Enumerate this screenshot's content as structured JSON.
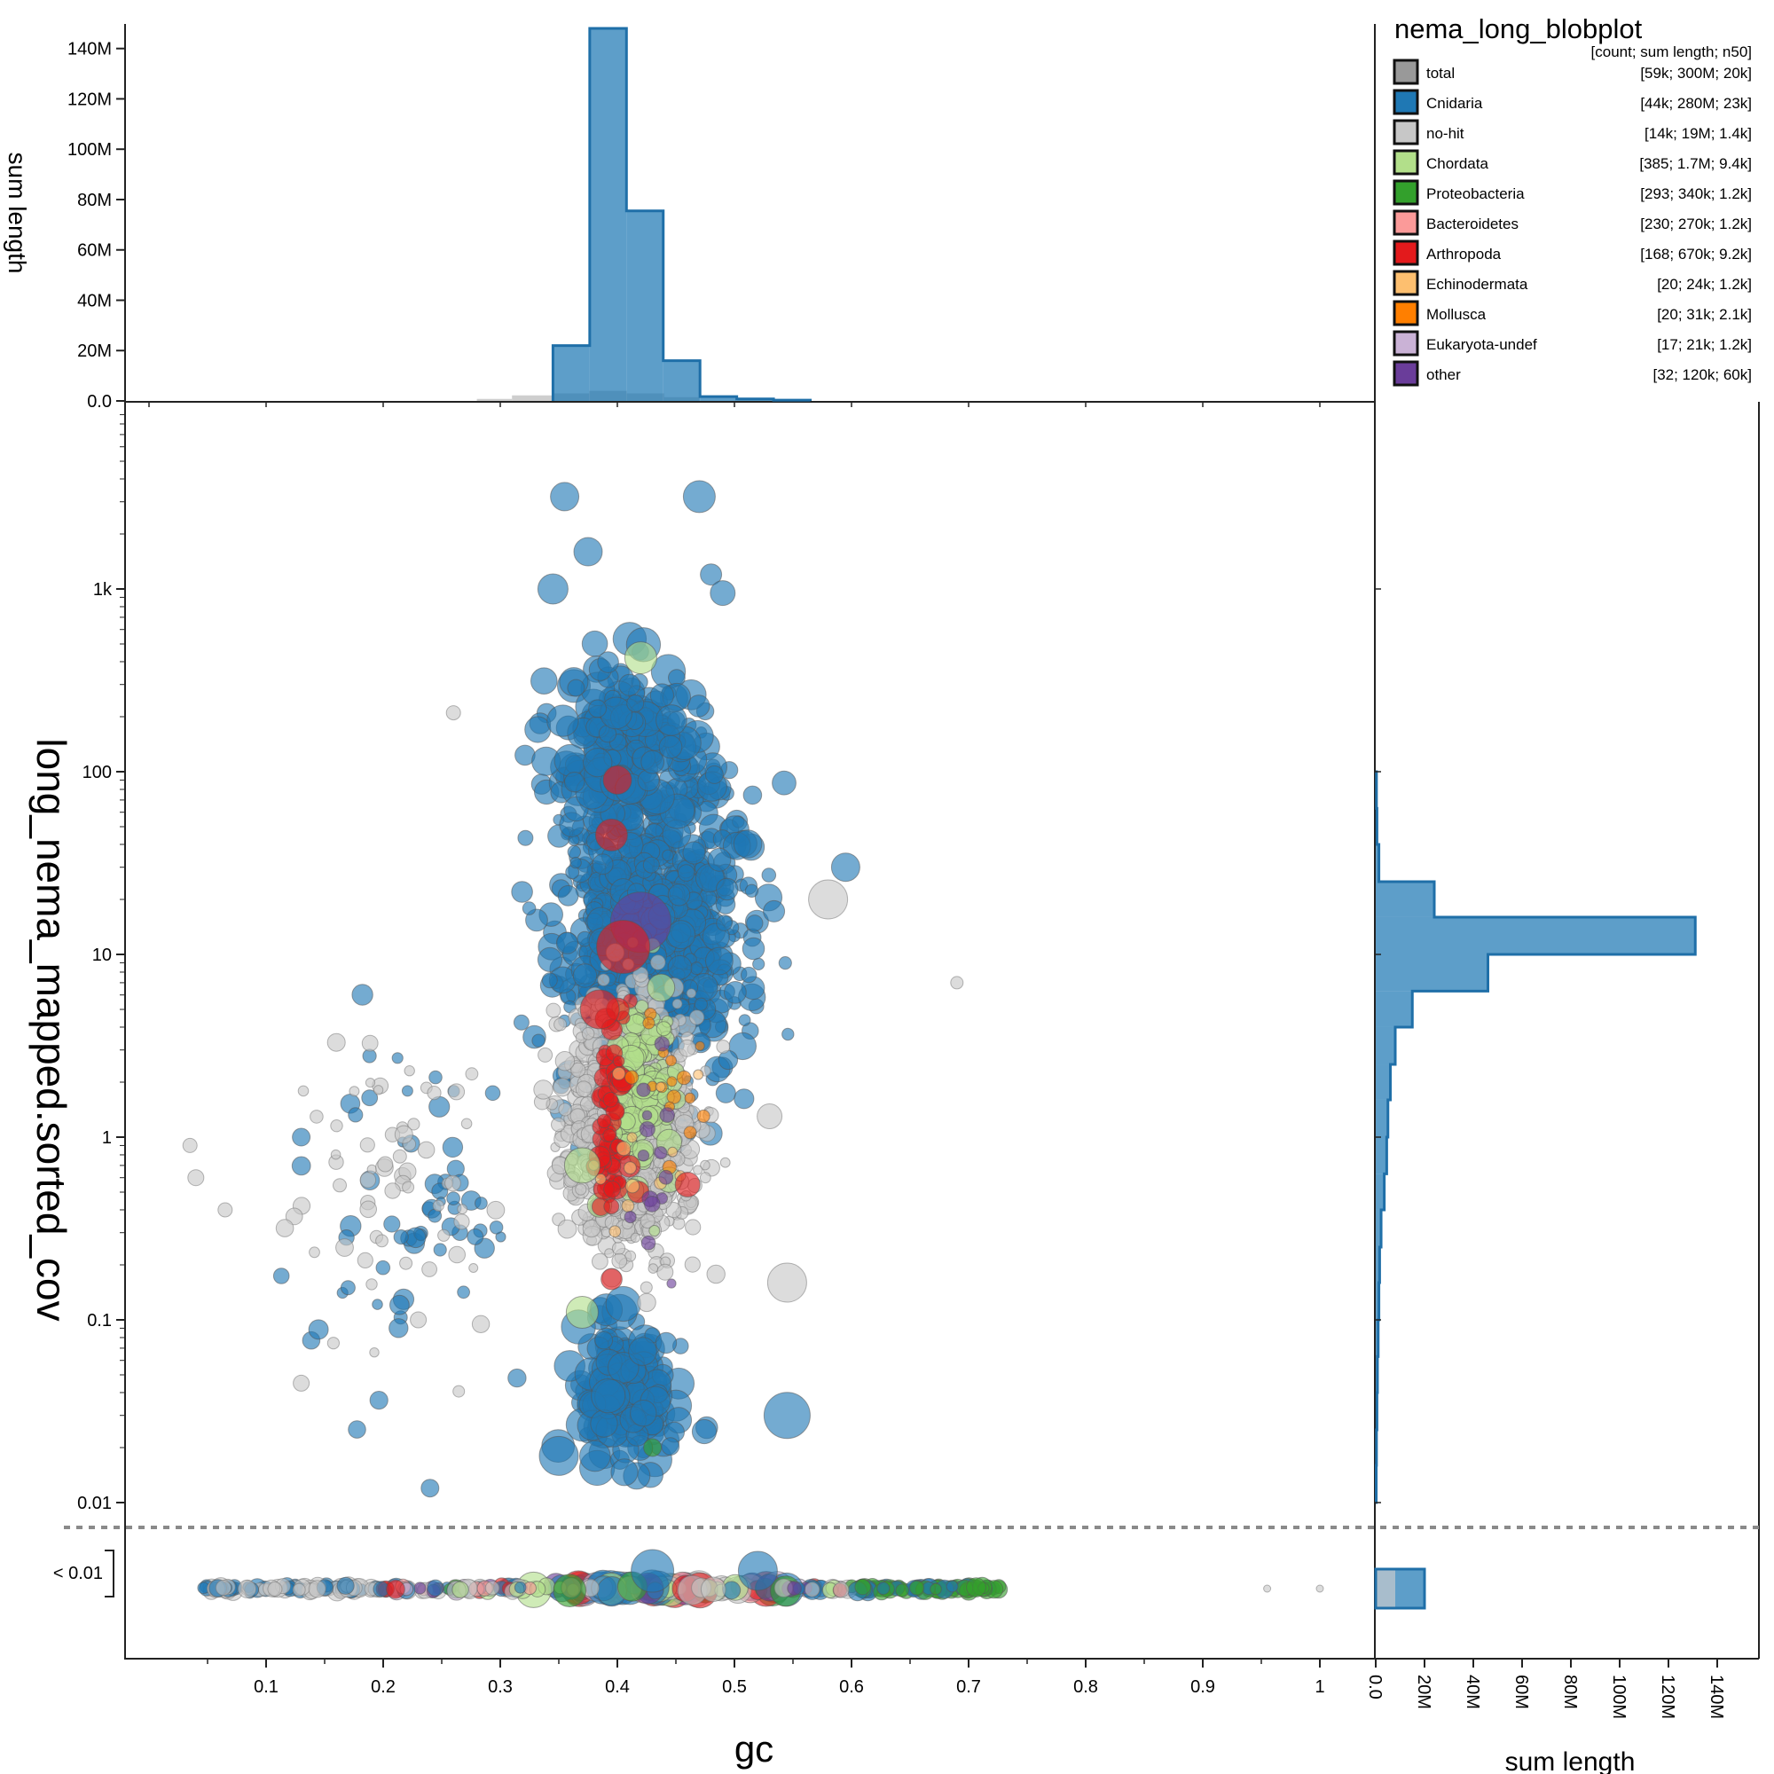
{
  "chart_data": {
    "type": "scatter",
    "title": "nema_long_blobplot",
    "xlabel": "gc",
    "ylabel": "long_nema_mapped.sorted_cov",
    "xlim": [
      0,
      1.05
    ],
    "ylim_log": [
      0.01,
      5000
    ],
    "y_scale": "log",
    "x_ticks": [
      "0.1",
      "0.2",
      "0.3",
      "0.4",
      "0.5",
      "0.6",
      "0.7",
      "0.8",
      "0.9",
      "1"
    ],
    "y_ticks": [
      "0.01",
      "0.1",
      "1",
      "10",
      "100",
      "1k"
    ],
    "below_threshold_label": "< 0.01",
    "legend": {
      "header": "[count; sum length; n50]",
      "placement": "top-right",
      "entries": [
        {
          "name": "total",
          "stats": "[59k; 300M; 20k]",
          "color": "#999999"
        },
        {
          "name": "Cnidaria",
          "stats": "[44k; 280M; 23k]",
          "color": "#1f78b4"
        },
        {
          "name": "no-hit",
          "stats": "[14k; 19M; 1.4k]",
          "color": "#c7c7c7"
        },
        {
          "name": "Chordata",
          "stats": "[385; 1.7M; 9.4k]",
          "color": "#b2df8a"
        },
        {
          "name": "Proteobacteria",
          "stats": "[293; 340k; 1.2k]",
          "color": "#33a02c"
        },
        {
          "name": "Bacteroidetes",
          "stats": "[230; 270k; 1.2k]",
          "color": "#fb9a99"
        },
        {
          "name": "Arthropoda",
          "stats": "[168; 670k; 9.2k]",
          "color": "#e31a1c"
        },
        {
          "name": "Echinodermata",
          "stats": "[20; 24k; 1.2k]",
          "color": "#fdbf6f"
        },
        {
          "name": "Mollusca",
          "stats": "[20; 31k; 2.1k]",
          "color": "#ff7f00"
        },
        {
          "name": "Eukaryota-undef",
          "stats": "[17; 21k; 1.2k]",
          "color": "#cab2d6"
        },
        {
          "name": "other",
          "stats": "[32; 120k; 60k]",
          "color": "#6a3d9a"
        }
      ]
    },
    "top_histogram": {
      "ylabel": "sum length",
      "y_ticks": [
        "0.0",
        "20M",
        "40M",
        "60M",
        "80M",
        "100M",
        "120M",
        "140M"
      ],
      "ylim": [
        0,
        148
      ],
      "unit": "M",
      "bin_start": 0.345,
      "bin_width": 0.0314,
      "cnidaria": [
        22,
        148,
        75.5,
        16,
        1.7,
        0.8,
        0.3
      ],
      "background": [
        {
          "x0": 0.28,
          "x1": 0.31,
          "value": 0.8
        },
        {
          "x0": 0.31,
          "x1": 0.345,
          "value": 2.2
        },
        {
          "x0": 0.345,
          "x1": 0.376,
          "value": 3
        },
        {
          "x0": 0.376,
          "x1": 0.408,
          "value": 4
        },
        {
          "x0": 0.408,
          "x1": 0.44,
          "value": 3
        },
        {
          "x0": 0.44,
          "x1": 0.47,
          "value": 1.5
        }
      ]
    },
    "right_histogram": {
      "xlabel": "sum length",
      "x_ticks": [
        "0.0",
        "20M",
        "40M",
        "60M",
        "80M",
        "100M",
        "120M",
        "140M"
      ],
      "xlim": [
        0,
        148
      ],
      "unit": "M",
      "bins": [
        {
          "cov_low": 0.01,
          "cov_high": 0.016,
          "value": 0.2
        },
        {
          "cov_low": 0.016,
          "cov_high": 0.025,
          "value": 0.3
        },
        {
          "cov_low": 0.025,
          "cov_high": 0.04,
          "value": 0.5
        },
        {
          "cov_low": 0.04,
          "cov_high": 0.063,
          "value": 0.7
        },
        {
          "cov_low": 0.063,
          "cov_high": 0.1,
          "value": 1.0
        },
        {
          "cov_low": 0.1,
          "cov_high": 0.16,
          "value": 1.3
        },
        {
          "cov_low": 0.16,
          "cov_high": 0.25,
          "value": 1.6
        },
        {
          "cov_low": 0.25,
          "cov_high": 0.4,
          "value": 2.2
        },
        {
          "cov_low": 0.4,
          "cov_high": 0.63,
          "value": 3.5
        },
        {
          "cov_low": 0.63,
          "cov_high": 1.0,
          "value": 4.5
        },
        {
          "cov_low": 1.0,
          "cov_high": 1.6,
          "value": 5
        },
        {
          "cov_low": 1.6,
          "cov_high": 2.5,
          "value": 6
        },
        {
          "cov_low": 2.5,
          "cov_high": 4.0,
          "value": 8
        },
        {
          "cov_low": 4.0,
          "cov_high": 6.3,
          "value": 15
        },
        {
          "cov_low": 6.3,
          "cov_high": 10,
          "value": 46
        },
        {
          "cov_low": 10,
          "cov_high": 16,
          "value": 131
        },
        {
          "cov_low": 16,
          "cov_high": 25,
          "value": 24
        },
        {
          "cov_low": 25,
          "cov_high": 40,
          "value": 1.3
        },
        {
          "cov_low": 40,
          "cov_high": 63,
          "value": 0.5
        },
        {
          "cov_low": 63,
          "cov_high": 100,
          "value": 0.3
        }
      ],
      "below_threshold": {
        "nohit": 8,
        "cnidaria": 20
      }
    },
    "points": [
      {
        "gc": 0.355,
        "cov": 3200,
        "r": 16,
        "c": "#1f78b4"
      },
      {
        "gc": 0.47,
        "cov": 3200,
        "r": 18,
        "c": "#1f78b4"
      },
      {
        "gc": 0.375,
        "cov": 1600,
        "r": 16,
        "c": "#1f78b4"
      },
      {
        "gc": 0.345,
        "cov": 1000,
        "r": 17,
        "c": "#1f78b4"
      },
      {
        "gc": 0.48,
        "cov": 1200,
        "r": 12,
        "c": "#1f78b4"
      },
      {
        "gc": 0.49,
        "cov": 950,
        "r": 14,
        "c": "#1f78b4"
      },
      {
        "gc": 0.42,
        "cov": 420,
        "r": 18,
        "c": "#b2df8a"
      },
      {
        "gc": 0.26,
        "cov": 210,
        "r": 8,
        "c": "#c7c7c7"
      },
      {
        "gc": 0.4,
        "cov": 90,
        "r": 16,
        "c": "#e31a1c"
      },
      {
        "gc": 0.395,
        "cov": 45,
        "r": 18,
        "c": "#e31a1c"
      },
      {
        "gc": 0.42,
        "cov": 15,
        "r": 34,
        "c": "#6a3d9a"
      },
      {
        "gc": 0.405,
        "cov": 11,
        "r": 30,
        "c": "#e31a1c"
      },
      {
        "gc": 0.385,
        "cov": 5,
        "r": 22,
        "c": "#e31a1c"
      },
      {
        "gc": 0.69,
        "cov": 7,
        "r": 7,
        "c": "#c7c7c7"
      },
      {
        "gc": 0.58,
        "cov": 20,
        "r": 22,
        "c": "#c7c7c7"
      },
      {
        "gc": 0.595,
        "cov": 30,
        "r": 16,
        "c": "#1f78b4"
      },
      {
        "gc": 0.16,
        "cov": 3.3,
        "r": 10,
        "c": "#c7c7c7"
      },
      {
        "gc": 0.13,
        "cov": 1,
        "r": 10,
        "c": "#1f78b4"
      },
      {
        "gc": 0.065,
        "cov": 0.4,
        "r": 8,
        "c": "#c7c7c7"
      },
      {
        "gc": 0.37,
        "cov": 0.7,
        "r": 20,
        "c": "#b2df8a"
      },
      {
        "gc": 0.37,
        "cov": 0.11,
        "r": 18,
        "c": "#b2df8a"
      },
      {
        "gc": 0.43,
        "cov": 0.02,
        "r": 10,
        "c": "#33a02c"
      },
      {
        "gc": 0.13,
        "cov": 0.045,
        "r": 9,
        "c": "#c7c7c7"
      },
      {
        "gc": 0.24,
        "cov": 0.012,
        "r": 10,
        "c": "#1f78b4"
      },
      {
        "gc": 0.35,
        "cov": 0.018,
        "r": 22,
        "c": "#1f78b4"
      },
      {
        "gc": 0.545,
        "cov": 0.03,
        "r": 26,
        "c": "#1f78b4"
      },
      {
        "gc": 0.52,
        "cov": 0.005,
        "r": 22,
        "c": "#1f78b4"
      },
      {
        "gc": 0.43,
        "cov": 0.0045,
        "r": 24,
        "c": "#1f78b4"
      },
      {
        "gc": 0.545,
        "cov": 0.16,
        "r": 22,
        "c": "#c7c7c7"
      },
      {
        "gc": 0.46,
        "cov": 0.55,
        "r": 14,
        "c": "#e31a1c"
      },
      {
        "gc": 0.53,
        "cov": 1.3,
        "r": 14,
        "c": "#c7c7c7"
      },
      {
        "gc": 0.17,
        "cov": 0.15,
        "r": 8,
        "c": "#1f78b4"
      },
      {
        "gc": 0.23,
        "cov": 0.1,
        "r": 9,
        "c": "#c7c7c7"
      },
      {
        "gc": 0.035,
        "cov": 0.9,
        "r": 8,
        "c": "#c7c7c7"
      },
      {
        "gc": 0.04,
        "cov": 0.6,
        "r": 9,
        "c": "#c7c7c7"
      }
    ],
    "baseline": {
      "cov": "< 0.01",
      "gc_range": [
        0.04,
        0.73
      ],
      "extra_points": [
        0.955,
        1.0
      ]
    }
  }
}
